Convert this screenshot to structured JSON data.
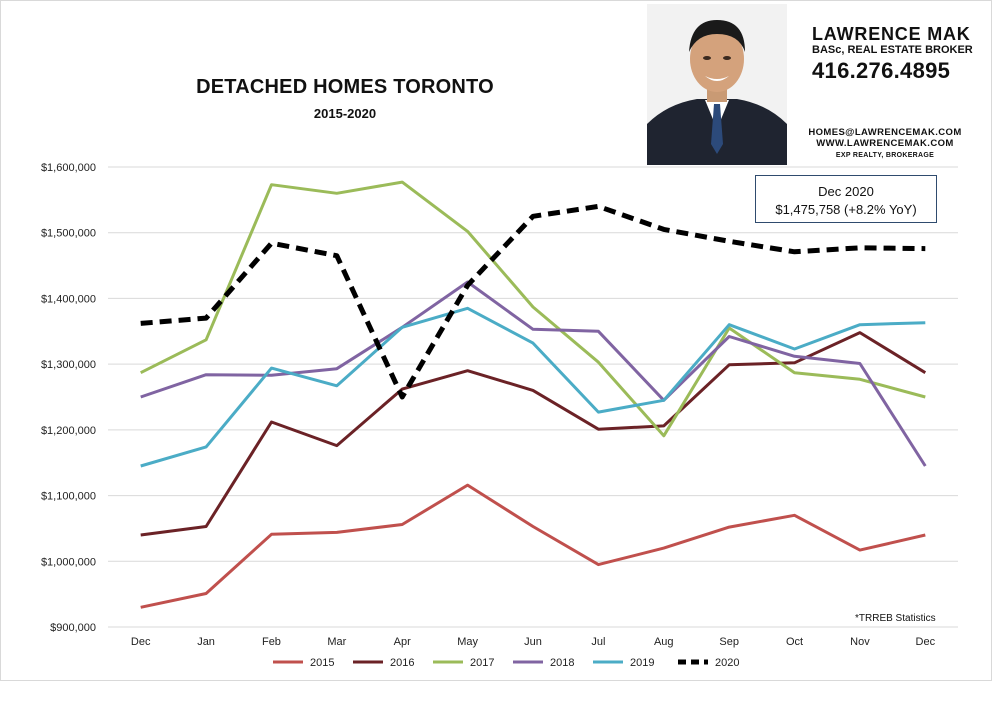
{
  "header": {
    "title": "DETACHED HOMES TORONTO",
    "subtitle": "2015-2020"
  },
  "agent": {
    "name": "LAWRENCE MAK",
    "role": "BASc, REAL ESTATE BROKER",
    "phone": "416.276.4895",
    "email": "HOMES@LAWRENCEMAK.COM",
    "website": "WWW.LAWRENCEMAK.COM",
    "brokerage": "EXP REALTY, BROKERAGE"
  },
  "callout": {
    "line1": "Dec 2020",
    "line2": "$1,475,758  (+8.2% YoY)"
  },
  "source": "*TRREB Statistics",
  "chart_data": {
    "type": "line",
    "title": "DETACHED HOMES TORONTO",
    "subtitle": "2015-2020",
    "categories": [
      "Dec",
      "Jan",
      "Feb",
      "Mar",
      "Apr",
      "May",
      "Jun",
      "Jul",
      "Aug",
      "Sep",
      "Oct",
      "Nov",
      "Dec"
    ],
    "ylim": [
      900000,
      1600000
    ],
    "yticks": [
      {
        "value": 900000,
        "label": "$900,000"
      },
      {
        "value": 1000000,
        "label": "$1,000,000"
      },
      {
        "value": 1100000,
        "label": "$1,100,000"
      },
      {
        "value": 1200000,
        "label": "$1,200,000"
      },
      {
        "value": 1300000,
        "label": "$1,300,000"
      },
      {
        "value": 1400000,
        "label": "$1,400,000"
      },
      {
        "value": 1500000,
        "label": "$1,500,000"
      },
      {
        "value": 1600000,
        "label": "$1,600,000"
      }
    ],
    "grid": true,
    "legend_position": "bottom",
    "series": [
      {
        "name": "2015",
        "color": "#c0504d",
        "dashed": false,
        "values": [
          930000,
          951000,
          1041000,
          1044000,
          1056000,
          1116000,
          1053000,
          995000,
          1020000,
          1052000,
          1070000,
          1017000,
          1040000
        ]
      },
      {
        "name": "2016",
        "color": "#6b2226",
        "dashed": false,
        "values": [
          1040000,
          1053000,
          1212000,
          1176000,
          1262000,
          1290000,
          1260000,
          1201000,
          1206000,
          1299000,
          1302000,
          1348000,
          1287000
        ]
      },
      {
        "name": "2017",
        "color": "#9bbb59",
        "dashed": false,
        "values": [
          1287000,
          1337000,
          1573000,
          1560000,
          1577000,
          1502000,
          1387000,
          1303000,
          1191000,
          1355000,
          1287000,
          1277000,
          1250000
        ]
      },
      {
        "name": "2018",
        "color": "#8064a2",
        "dashed": false,
        "values": [
          1250000,
          1284000,
          1283000,
          1293000,
          1356000,
          1425000,
          1353000,
          1350000,
          1245000,
          1342000,
          1312000,
          1301000,
          1145000
        ]
      },
      {
        "name": "2019",
        "color": "#4bacc6",
        "dashed": false,
        "values": [
          1145000,
          1174000,
          1294000,
          1267000,
          1356000,
          1385000,
          1332000,
          1227000,
          1245000,
          1360000,
          1323000,
          1360000,
          1363000
        ]
      },
      {
        "name": "2020",
        "color": "#000000",
        "dashed": true,
        "values": [
          1362000,
          1370000,
          1484000,
          1465000,
          1250000,
          1420000,
          1525000,
          1540000,
          1505000,
          1487000,
          1471000,
          1477000,
          1475758
        ]
      }
    ]
  }
}
